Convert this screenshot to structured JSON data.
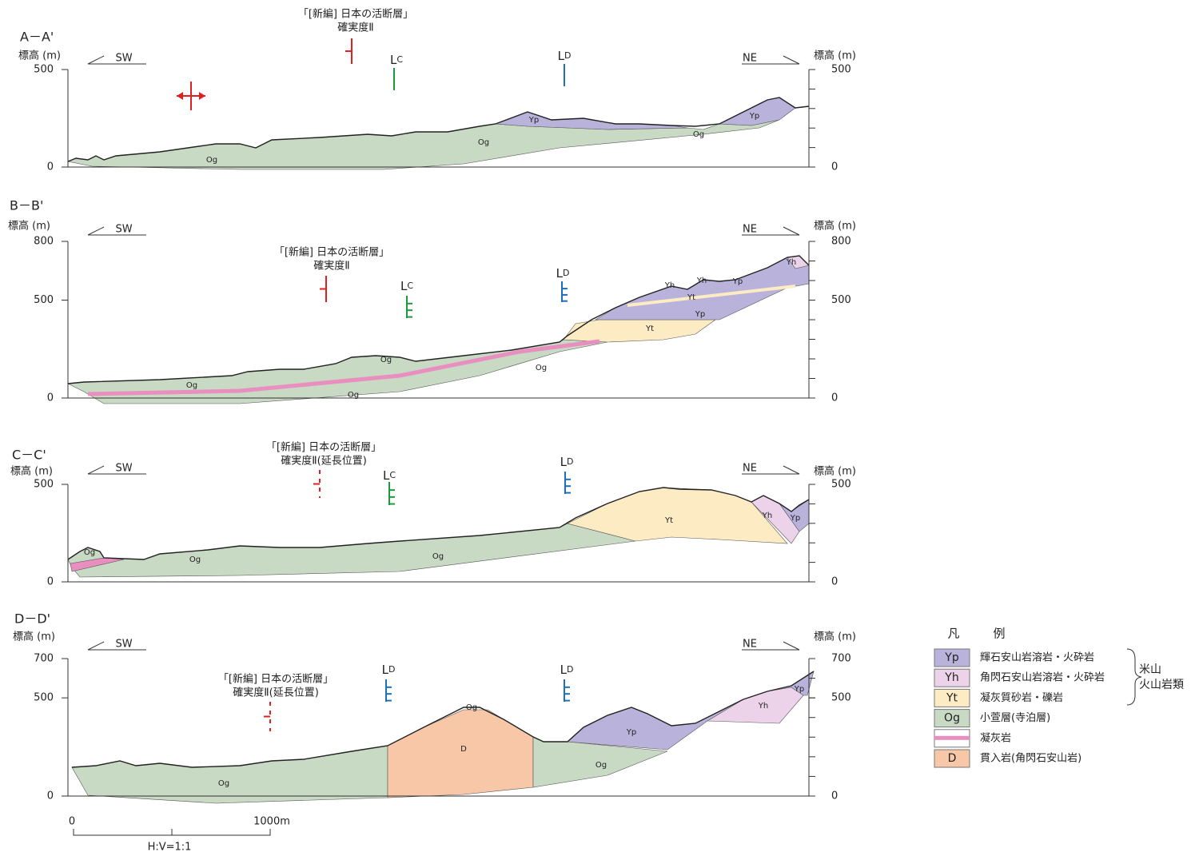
{
  "sections": [
    {
      "label": "A－A'",
      "y_axis_title": "標高 (m)",
      "y_axis_title_right": "標高 (m)",
      "yticks": [
        0,
        500
      ],
      "direction_left": "SW",
      "direction_right": "NE",
      "fault_note": [
        "「[新編] 日本の活断層」",
        "確実度Ⅱ"
      ],
      "lineaments": [
        {
          "main": "L",
          "sub": "C"
        },
        {
          "main": "L",
          "sub": "D"
        }
      ],
      "unit_labels": [
        "Og",
        "Og",
        "Yp",
        "Og",
        "Yp"
      ]
    },
    {
      "label": "B－B'",
      "y_axis_title": "標高 (m)",
      "y_axis_title_right": "標高 (m)",
      "yticks": [
        0,
        500,
        800
      ],
      "direction_left": "SW",
      "direction_right": "NE",
      "fault_note": [
        "「[新編] 日本の活断層」",
        "確実度Ⅱ"
      ],
      "lineaments": [
        {
          "main": "L",
          "sub": "C"
        },
        {
          "main": "L",
          "sub": "D"
        }
      ],
      "unit_labels": [
        "Og",
        "Og",
        "Og",
        "Og",
        "Yt",
        "Yp",
        "Yt",
        "Yh",
        "Yh",
        "Yp",
        "Yh"
      ]
    },
    {
      "label": "C－C'",
      "y_axis_title": "標高 (m)",
      "y_axis_title_right": "標高 (m)",
      "yticks": [
        0,
        500
      ],
      "direction_left": "SW",
      "direction_right": "NE",
      "fault_note": [
        "「[新編] 日本の活断層」",
        "確実度Ⅱ(延長位置)"
      ],
      "lineaments": [
        {
          "main": "L",
          "sub": "C"
        },
        {
          "main": "L",
          "sub": "D"
        }
      ],
      "unit_labels": [
        "Og",
        "Og",
        "Og",
        "Yt",
        "Yh",
        "Yp"
      ]
    },
    {
      "label": "D－D'",
      "y_axis_title": "標高 (m)",
      "y_axis_title_right": "標高 (m)",
      "yticks": [
        0,
        500,
        700
      ],
      "direction_left": "SW",
      "direction_right": "NE",
      "fault_note": [
        "「[新編] 日本の活断層」",
        "確実度Ⅱ(延長位置)"
      ],
      "lineaments": [
        {
          "main": "L",
          "sub": "D"
        },
        {
          "main": "L",
          "sub": "D"
        }
      ],
      "unit_labels": [
        "Og",
        "D",
        "Og",
        "Yp",
        "Og",
        "Yh",
        "Yp"
      ]
    }
  ],
  "scale": {
    "start": "0",
    "end": "1000m",
    "ratio": "H:V=1:1"
  },
  "legend": {
    "title": [
      "凡",
      "例"
    ],
    "entries": [
      {
        "code": "Yp",
        "text": "輝石安山岩溶岩・火砕岩"
      },
      {
        "code": "Yh",
        "text": "角閃石安山岩溶岩・火砕岩"
      },
      {
        "code": "Yt",
        "text": "凝灰質砂岩・礫岩"
      },
      {
        "code": "Og",
        "text": "小萱層(寺泊層)"
      },
      {
        "text": "凝灰岩"
      },
      {
        "code": "D",
        "text": "貫入岩(角閃石安山岩)"
      }
    ],
    "group": [
      "米山",
      "火山岩類"
    ]
  }
}
